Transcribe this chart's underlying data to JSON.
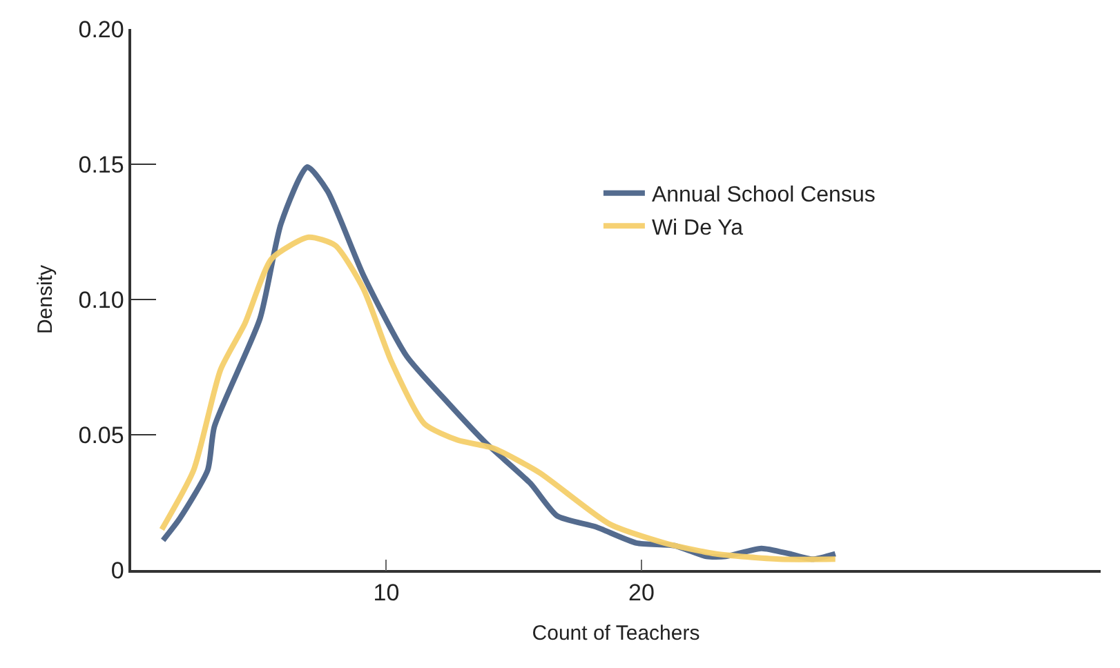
{
  "chart_data": {
    "type": "line",
    "xlabel": "Count of Teachers",
    "ylabel": "Density",
    "xlim": [
      0,
      38
    ],
    "xticks": [
      10,
      20
    ],
    "ylim": [
      0,
      0.2
    ],
    "yticks": [
      0,
      {
        "value": 0.05,
        "label": "0.05"
      },
      {
        "value": 0.1,
        "label": "0.10"
      },
      {
        "value": 0.15,
        "label": "0.15"
      },
      {
        "value": 0.2,
        "label": "0.20"
      }
    ],
    "legend": "top",
    "marker": "none",
    "line_style": "solid",
    "series": [
      {
        "name": "Annual School Census",
        "color": "#4b6489",
        "x": [
          1.25,
          1.9,
          3.0,
          3.26,
          5.05,
          5.87,
          6.9,
          7.7,
          9.1,
          10.8,
          12.4,
          13.9,
          15.65,
          16.7,
          18.2,
          19.8,
          21.3,
          22.55,
          23.3,
          24.7,
          25.8,
          26.7,
          27.6
        ],
        "values": [
          0.011,
          0.019,
          0.037,
          0.053,
          0.093,
          0.128,
          0.149,
          0.14,
          0.109,
          0.079,
          0.062,
          0.047,
          0.032,
          0.02,
          0.016,
          0.01,
          0.009,
          0.005,
          0.005,
          0.008,
          0.006,
          0.004,
          0.006
        ]
      },
      {
        "name": "Wi De Ya",
        "color": "#f5cf6b",
        "x": [
          1.2,
          2.45,
          3.5,
          4.45,
          5.5,
          6.95,
          8.0,
          9.1,
          10.2,
          11.5,
          12.8,
          14.2,
          16.0,
          18.75,
          20.9,
          22.9,
          25.4,
          27.6
        ],
        "values": [
          0.015,
          0.037,
          0.074,
          0.091,
          0.115,
          0.123,
          0.12,
          0.104,
          0.077,
          0.054,
          0.048,
          0.045,
          0.036,
          0.017,
          0.01,
          0.006,
          0.004,
          0.004
        ]
      }
    ]
  }
}
